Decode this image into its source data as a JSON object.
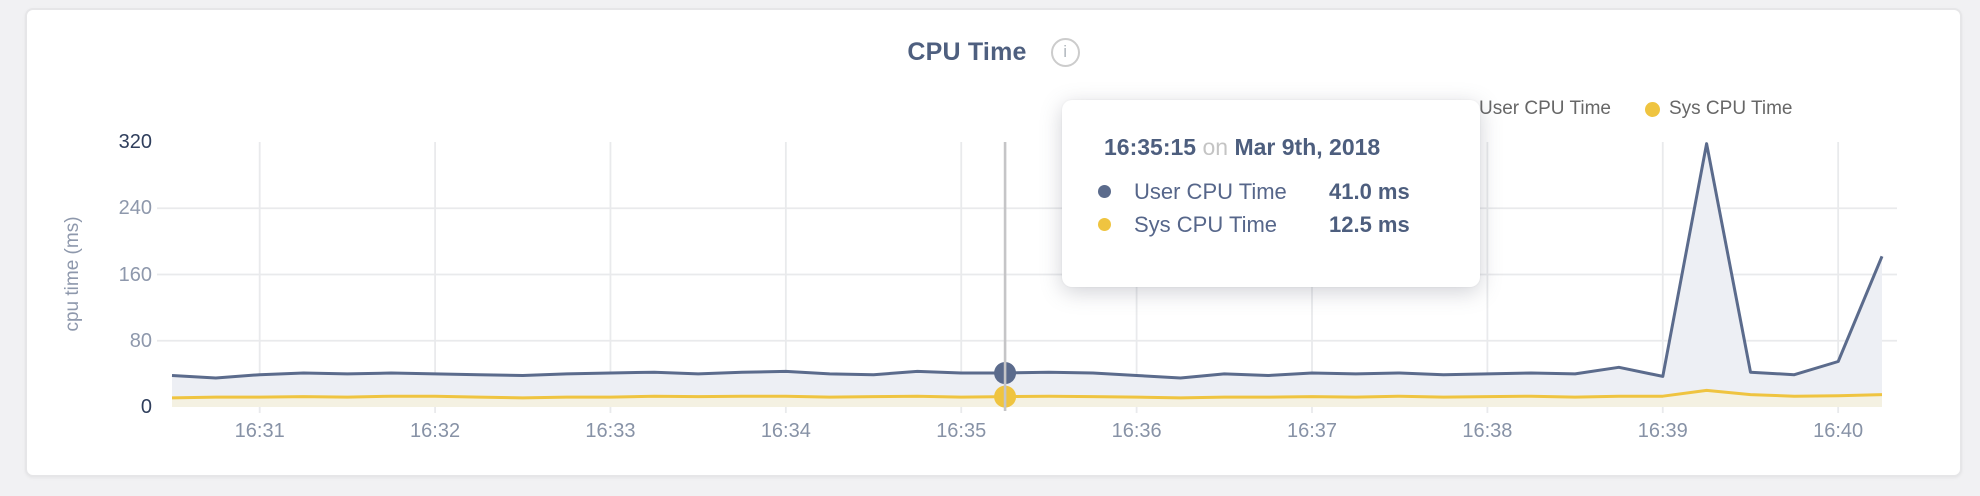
{
  "header": {
    "title": "CPU Time",
    "info_icon": "i"
  },
  "legend": {
    "items": [
      {
        "label": "User CPU Time",
        "color": "#5b6b8c"
      },
      {
        "label": "Sys CPU Time",
        "color": "#efc440"
      }
    ]
  },
  "tooltip": {
    "time": "16:35:15",
    "conjunction": "on",
    "date": "Mar 9th, 2018",
    "rows": [
      {
        "label": "User CPU Time",
        "value": "41.0 ms",
        "color": "#5b6b8c"
      },
      {
        "label": "Sys CPU Time",
        "value": "12.5 ms",
        "color": "#efc440"
      }
    ]
  },
  "chart_data": {
    "type": "area",
    "title": "CPU Time",
    "xlabel": "",
    "ylabel": "cpu time (ms)",
    "ylim": [
      0,
      320
    ],
    "yticks": [
      0,
      80,
      160,
      240,
      320
    ],
    "xticks": [
      "16:31",
      "16:32",
      "16:33",
      "16:34",
      "16:35",
      "16:36",
      "16:37",
      "16:38",
      "16:39",
      "16:40"
    ],
    "grid": true,
    "legend_position": "top-right",
    "x": [
      "16:30:30",
      "16:30:45",
      "16:31:00",
      "16:31:15",
      "16:31:30",
      "16:31:45",
      "16:32:00",
      "16:32:15",
      "16:32:30",
      "16:32:45",
      "16:33:00",
      "16:33:15",
      "16:33:30",
      "16:33:45",
      "16:34:00",
      "16:34:15",
      "16:34:30",
      "16:34:45",
      "16:35:00",
      "16:35:15",
      "16:35:30",
      "16:35:45",
      "16:36:00",
      "16:36:15",
      "16:36:30",
      "16:36:45",
      "16:37:00",
      "16:37:15",
      "16:37:30",
      "16:37:45",
      "16:38:00",
      "16:38:15",
      "16:38:30",
      "16:38:45",
      "16:39:00",
      "16:39:15",
      "16:39:30",
      "16:39:45",
      "16:40:00",
      "16:40:15"
    ],
    "series": [
      {
        "name": "User CPU Time",
        "color": "#5b6b8c",
        "fill": "#edeff4",
        "values": [
          38,
          35,
          39,
          41,
          40,
          41,
          40,
          39,
          38,
          40,
          41,
          42,
          40,
          42,
          43,
          40,
          39,
          43,
          41,
          41,
          42,
          41,
          38,
          35,
          40,
          38,
          41,
          40,
          41,
          39,
          40,
          41,
          40,
          48,
          37,
          318,
          42,
          39,
          55,
          182
        ]
      },
      {
        "name": "Sys CPU Time",
        "color": "#efc440",
        "fill": "#f4f1e2",
        "values": [
          11,
          12,
          12,
          12.5,
          12,
          13,
          13,
          12,
          11,
          12,
          12,
          13,
          12.5,
          13,
          13,
          12,
          12.5,
          13,
          12,
          12.5,
          13,
          12.5,
          12,
          11,
          12,
          12,
          12.5,
          12,
          13,
          12,
          12.5,
          13,
          12,
          13,
          13,
          20,
          15,
          13,
          13.5,
          15
        ]
      }
    ],
    "hover": {
      "index": 19,
      "time": "16:35:15",
      "date": "Mar 9th, 2018",
      "user_ms": 41.0,
      "sys_ms": 12.5
    },
    "hover_line_color": "#c5c5c7",
    "grid_color": "#e9eaec"
  }
}
